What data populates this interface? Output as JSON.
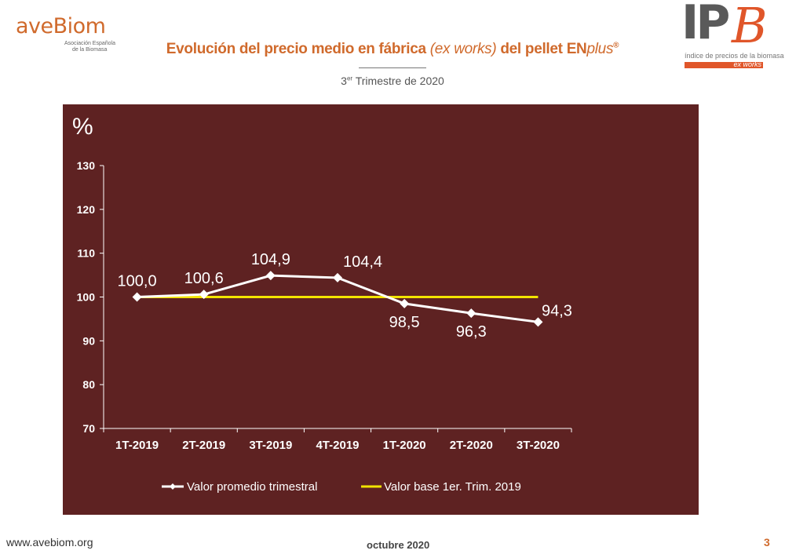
{
  "header": {
    "logo_left": {
      "brand": "aveBiom",
      "sub1": "Asociación Española",
      "sub2": "de la Biomasa"
    },
    "logo_right": {
      "mark_ip": "IP",
      "mark_b": "B",
      "tagline": "índice de precios de la biomasa",
      "bar_label": "ex works"
    },
    "title_part1": "Evolución del precio medio en fábrica ",
    "title_italic": "(ex works)",
    "title_part2": " del pellet EN",
    "title_italic2": "plus",
    "title_reg": "®",
    "subtitle_num": "3",
    "subtitle_sup": "er",
    "subtitle_rest": " Trimestre de 2020"
  },
  "chart_data": {
    "type": "line",
    "unit_label": "%",
    "categories": [
      "1T-2019",
      "2T-2019",
      "3T-2019",
      "4T-2019",
      "1T-2020",
      "2T-2020",
      "3T-2020"
    ],
    "series": [
      {
        "name": "Valor promedio trimestral",
        "values": [
          100.0,
          100.6,
          104.9,
          104.4,
          98.5,
          96.3,
          94.3
        ],
        "labels": [
          "100,0",
          "100,6",
          "104,9",
          "104,4",
          "98,5",
          "96,3",
          "94,3"
        ],
        "color": "#ffffff",
        "marker": "diamond"
      },
      {
        "name": "Valor base 1er. Trim. 2019",
        "values": [
          100,
          100,
          100,
          100,
          100,
          100,
          100
        ],
        "color": "#f2e400"
      }
    ],
    "yticks": [
      "70",
      "80",
      "90",
      "100",
      "110",
      "120",
      "130"
    ],
    "ylim": [
      70,
      130
    ],
    "grid": false,
    "legend_position": "bottom",
    "background": "#5e2222"
  },
  "footer": {
    "url": "www.avebiom.org",
    "date": "octubre 2020",
    "page": "3"
  }
}
